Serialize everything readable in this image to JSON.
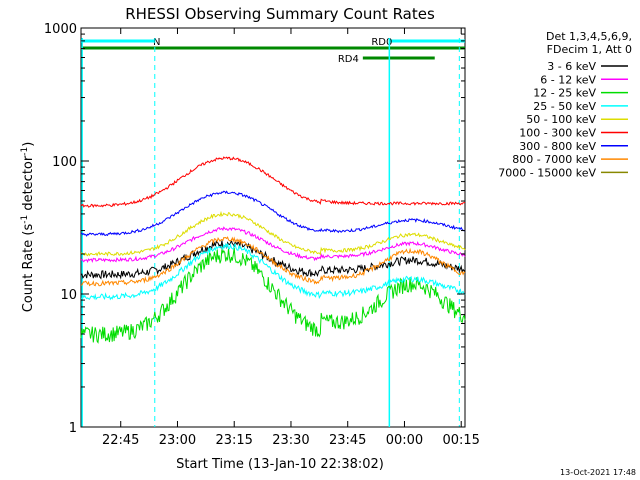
{
  "chart_data": {
    "type": "line",
    "title": "RHESSI Observing Summary Count Rates",
    "xlabel": "Start Time (13-Jan-10 22:38:02)",
    "ylabel_main": "Count Rate (s",
    "ylabel_sup1": "-1",
    "ylabel_mid": " detector",
    "ylabel_sup2": "-1",
    "ylabel_end": ")",
    "y_scale": "log",
    "ylim": [
      1,
      1000
    ],
    "xlim_minutes": [
      -3.5,
      98
    ],
    "x_ticks": [
      {
        "m": 7,
        "label": "22:45"
      },
      {
        "m": 22,
        "label": "23:00"
      },
      {
        "m": 37,
        "label": "23:15"
      },
      {
        "m": 52,
        "label": "23:30"
      },
      {
        "m": 67,
        "label": "23:45"
      },
      {
        "m": 82,
        "label": "00:00"
      },
      {
        "m": 97,
        "label": "00:15"
      }
    ],
    "y_ticks": [
      {
        "v": 1,
        "label": "1"
      },
      {
        "v": 10,
        "label": "10"
      },
      {
        "v": 100,
        "label": "100"
      },
      {
        "v": 1000,
        "label": "1000"
      }
    ],
    "legend": {
      "header1": "Det 1,3,4,5,6,9,",
      "header2": "FDecim 1, Att 0",
      "placement": "right"
    },
    "series": [
      {
        "name": "3 - 6 keV",
        "color": "#000000",
        "pre": 14,
        "post": 15,
        "peak": 24,
        "peak_t": 35,
        "w": 9,
        "peak2": 18,
        "peak2_t": 84,
        "w2": 7,
        "noise": 0.07
      },
      {
        "name": "6 - 12 keV",
        "color": "#ff00ff",
        "pre": 18,
        "post": 19,
        "peak": 31,
        "peak_t": 35,
        "w": 9,
        "peak2": 24,
        "peak2_t": 84,
        "w2": 7,
        "noise": 0.03
      },
      {
        "name": "12 - 25 keV",
        "color": "#00dd00",
        "pre": 5,
        "post": 6,
        "peak": 20,
        "peak_t": 35,
        "w": 9,
        "peak2": 12,
        "peak2_t": 84,
        "w2": 7,
        "noise": 0.14
      },
      {
        "name": "25 - 50 keV",
        "color": "#00ffff",
        "pre": 9.5,
        "post": 10,
        "peak": 23,
        "peak_t": 35,
        "w": 9,
        "peak2": 13,
        "peak2_t": 84,
        "w2": 7,
        "noise": 0.05
      },
      {
        "name": "50 - 100 keV",
        "color": "#dddd00",
        "pre": 20,
        "post": 21,
        "peak": 40,
        "peak_t": 35,
        "w": 9,
        "peak2": 28,
        "peak2_t": 84,
        "w2": 7,
        "noise": 0.03
      },
      {
        "name": "100 - 300 keV",
        "color": "#ff0000",
        "pre": 46,
        "post": 48,
        "peak": 105,
        "peak_t": 35,
        "w": 10,
        "peak2": 0,
        "peak2_t": 84,
        "w2": 7,
        "noise": 0.025
      },
      {
        "name": "300 - 800 keV",
        "color": "#0000ff",
        "pre": 28,
        "post": 29,
        "peak": 58,
        "peak_t": 35,
        "w": 10,
        "peak2": 36,
        "peak2_t": 84,
        "w2": 8,
        "noise": 0.025
      },
      {
        "name": "800 - 7000 keV",
        "color": "#ff8800",
        "pre": 12,
        "post": 13,
        "peak": 26,
        "peak_t": 35,
        "w": 9,
        "peak2": 21,
        "peak2_t": 84,
        "w2": 7,
        "noise": 0.04
      },
      {
        "name": "7000 - 15000 keV",
        "color": "#888800",
        "pre": 0,
        "post": 0,
        "peak": 0,
        "peak_t": 35,
        "w": 9,
        "peak2": 0,
        "peak2_t": 84,
        "w2": 7,
        "noise": 0
      }
    ],
    "night_shading": {
      "color": "#00ffff",
      "sunset_m": 16,
      "sunrise_m": 96.5
    },
    "saa_marks": [
      {
        "m": -3.2
      },
      {
        "m": 78
      }
    ],
    "flags": [
      {
        "label": "N",
        "start_m": -3.5,
        "end_m": 16,
        "color": "#00ffff",
        "row": 1
      },
      {
        "label": "RD0",
        "start_m": 78,
        "end_m": 98,
        "color": "#00ffff",
        "row": 1
      },
      {
        "label": "",
        "start_m": -3.5,
        "end_m": 98,
        "color": "#008800",
        "row": 2
      },
      {
        "label": "RD4",
        "start_m": 71,
        "end_m": 90,
        "color": "#008800",
        "row": 3
      }
    ],
    "grid": false
  },
  "footer_date": "13-Oct-2021 17:48"
}
